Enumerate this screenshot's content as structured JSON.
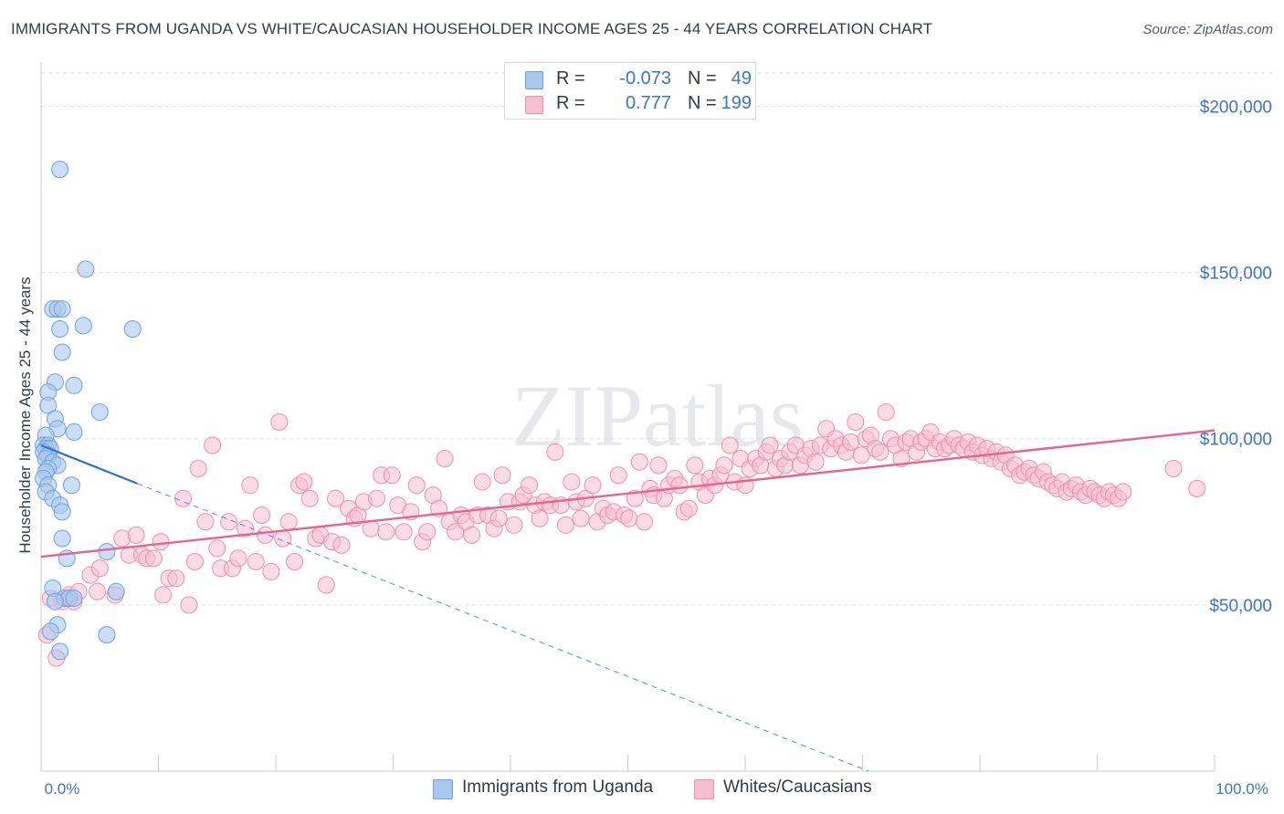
{
  "title": "IMMIGRANTS FROM UGANDA VS WHITE/CAUCASIAN HOUSEHOLDER INCOME AGES 25 - 44 YEARS CORRELATION CHART",
  "source": "Source: ZipAtlas.com",
  "watermark": "ZIPatlas",
  "colors": {
    "blue_fill": "#a9c8ef",
    "blue_stroke": "#6f9fdc",
    "blue_line": "#2f6fd4",
    "pink_fill": "#f7bfd0",
    "pink_stroke": "#ec8fae",
    "pink_line": "#e8648e",
    "grid": "#dde0e4",
    "axis_text": "#3d73c9"
  },
  "legend": {
    "r_label": "R =",
    "n_label": "N =",
    "rows": [
      {
        "r": "-0.073",
        "n": "49",
        "color": "#a9c8ef",
        "border": "#6f9fdc"
      },
      {
        "r": "0.777",
        "n": "199",
        "color": "#f7bfd0",
        "border": "#ec8fae"
      }
    ]
  },
  "bottom_legend": [
    {
      "label": "Immigrants from Uganda",
      "color": "#a9c8ef",
      "border": "#6f9fdc"
    },
    {
      "label": "Whites/Caucasians",
      "color": "#f7bfd0",
      "border": "#ec8fae"
    }
  ],
  "chart_data": {
    "type": "scatter",
    "title": "IMMIGRANTS FROM UGANDA VS WHITE/CAUCASIAN HOUSEHOLDER INCOME AGES 25 - 44 YEARS CORRELATION CHART",
    "xlabel": "",
    "ylabel": "Householder Income Ages 25 - 44 years",
    "xlim": [
      0,
      100
    ],
    "ylim": [
      0,
      210000
    ],
    "x_tick_labels": [
      "0.0%",
      "100.0%"
    ],
    "y_ticks": [
      50000,
      100000,
      150000,
      200000
    ],
    "y_tick_labels": [
      "$50,000",
      "$100,000",
      "$150,000",
      "$200,000"
    ],
    "grid": true,
    "series": [
      {
        "name": "Immigrants from Uganda",
        "r": -0.073,
        "n": 49,
        "trend": {
          "x": [
            0,
            8.2
          ],
          "y": [
            98000,
            86500
          ],
          "dashed_extension_to": [
            70.5,
            0
          ]
        },
        "points": [
          [
            1.6,
            181000
          ],
          [
            3.8,
            151000
          ],
          [
            1.0,
            139000
          ],
          [
            1.4,
            139000
          ],
          [
            1.8,
            139000
          ],
          [
            3.6,
            134000
          ],
          [
            7.8,
            133000
          ],
          [
            1.6,
            133000
          ],
          [
            1.8,
            126000
          ],
          [
            1.2,
            117000
          ],
          [
            2.8,
            116000
          ],
          [
            0.6,
            114000
          ],
          [
            5.0,
            108000
          ],
          [
            0.6,
            110000
          ],
          [
            1.2,
            106000
          ],
          [
            2.8,
            102000
          ],
          [
            1.4,
            103000
          ],
          [
            0.4,
            101000
          ],
          [
            0.2,
            98000
          ],
          [
            0.6,
            98000
          ],
          [
            0.4,
            97000
          ],
          [
            0.8,
            97000
          ],
          [
            0.2,
            96000
          ],
          [
            0.6,
            95000
          ],
          [
            0.4,
            94000
          ],
          [
            1.0,
            93000
          ],
          [
            1.4,
            92000
          ],
          [
            0.6,
            91000
          ],
          [
            0.4,
            90000
          ],
          [
            0.2,
            88000
          ],
          [
            0.6,
            86000
          ],
          [
            0.4,
            84000
          ],
          [
            2.6,
            86000
          ],
          [
            1.0,
            82000
          ],
          [
            1.6,
            80000
          ],
          [
            1.8,
            78000
          ],
          [
            1.8,
            70000
          ],
          [
            2.2,
            64000
          ],
          [
            5.6,
            66000
          ],
          [
            1.0,
            55000
          ],
          [
            6.4,
            54000
          ],
          [
            2.0,
            52000
          ],
          [
            2.4,
            52000
          ],
          [
            1.2,
            51000
          ],
          [
            2.8,
            52000
          ],
          [
            1.4,
            44000
          ],
          [
            0.8,
            42000
          ],
          [
            5.6,
            41000
          ],
          [
            1.6,
            36000
          ]
        ]
      },
      {
        "name": "Whites/Caucasians",
        "r": 0.777,
        "n": 199,
        "trend": {
          "x": [
            0,
            100
          ],
          "y": [
            64500,
            102500
          ]
        },
        "points": [
          [
            0.5,
            41000
          ],
          [
            1.3,
            34000
          ],
          [
            1.8,
            51000
          ],
          [
            0.8,
            52000
          ],
          [
            2.4,
            53000
          ],
          [
            2.8,
            51000
          ],
          [
            3.2,
            54000
          ],
          [
            4.2,
            59000
          ],
          [
            4.8,
            54000
          ],
          [
            5.0,
            61000
          ],
          [
            6.3,
            53000
          ],
          [
            6.9,
            70000
          ],
          [
            7.5,
            65000
          ],
          [
            8.1,
            71000
          ],
          [
            8.6,
            65000
          ],
          [
            9.0,
            64000
          ],
          [
            9.6,
            64000
          ],
          [
            10.2,
            69000
          ],
          [
            10.4,
            53000
          ],
          [
            10.9,
            58000
          ],
          [
            11.5,
            58000
          ],
          [
            12.1,
            82000
          ],
          [
            12.6,
            50000
          ],
          [
            13.1,
            63000
          ],
          [
            13.4,
            91000
          ],
          [
            14.0,
            75000
          ],
          [
            14.6,
            98000
          ],
          [
            15.0,
            67000
          ],
          [
            15.3,
            61000
          ],
          [
            16.0,
            75000
          ],
          [
            16.3,
            61000
          ],
          [
            16.8,
            64000
          ],
          [
            17.4,
            73000
          ],
          [
            17.8,
            86000
          ],
          [
            18.3,
            63000
          ],
          [
            18.8,
            77000
          ],
          [
            19.1,
            71000
          ],
          [
            19.6,
            60000
          ],
          [
            20.3,
            105000
          ],
          [
            20.6,
            70000
          ],
          [
            21.1,
            75000
          ],
          [
            21.6,
            63000
          ],
          [
            22.0,
            86000
          ],
          [
            22.4,
            87000
          ],
          [
            22.9,
            82000
          ],
          [
            23.4,
            70000
          ],
          [
            23.8,
            71000
          ],
          [
            24.3,
            56000
          ],
          [
            24.8,
            69000
          ],
          [
            25.1,
            82000
          ],
          [
            25.6,
            68000
          ],
          [
            26.2,
            79000
          ],
          [
            26.7,
            76000
          ],
          [
            27.0,
            77000
          ],
          [
            27.5,
            81000
          ],
          [
            28.1,
            73000
          ],
          [
            28.6,
            82000
          ],
          [
            29.0,
            89000
          ],
          [
            29.4,
            72000
          ],
          [
            29.9,
            89000
          ],
          [
            30.4,
            80000
          ],
          [
            30.9,
            72000
          ],
          [
            31.5,
            78000
          ],
          [
            32.0,
            86000
          ],
          [
            32.5,
            69000
          ],
          [
            32.9,
            72000
          ],
          [
            33.4,
            83000
          ],
          [
            33.9,
            79000
          ],
          [
            34.4,
            94000
          ],
          [
            34.8,
            75000
          ],
          [
            35.3,
            72000
          ],
          [
            35.8,
            77000
          ],
          [
            36.2,
            75000
          ],
          [
            36.7,
            71000
          ],
          [
            37.2,
            77000
          ],
          [
            37.6,
            87000
          ],
          [
            38.1,
            77000
          ],
          [
            38.6,
            73000
          ],
          [
            39.0,
            76000
          ],
          [
            39.3,
            89000
          ],
          [
            39.8,
            81000
          ],
          [
            40.3,
            74000
          ],
          [
            40.8,
            81000
          ],
          [
            41.1,
            83000
          ],
          [
            41.6,
            86000
          ],
          [
            42.1,
            80000
          ],
          [
            42.5,
            76000
          ],
          [
            42.9,
            81000
          ],
          [
            43.4,
            80000
          ],
          [
            43.8,
            96000
          ],
          [
            44.3,
            80000
          ],
          [
            44.7,
            74000
          ],
          [
            45.2,
            87000
          ],
          [
            45.6,
            81000
          ],
          [
            46.0,
            76000
          ],
          [
            46.4,
            82000
          ],
          [
            47.0,
            86000
          ],
          [
            47.4,
            75000
          ],
          [
            47.9,
            79000
          ],
          [
            48.3,
            77000
          ],
          [
            48.8,
            78000
          ],
          [
            49.2,
            89000
          ],
          [
            49.7,
            77000
          ],
          [
            50.1,
            76000
          ],
          [
            50.6,
            82000
          ],
          [
            51.0,
            93000
          ],
          [
            51.4,
            75000
          ],
          [
            51.9,
            85000
          ],
          [
            52.2,
            83000
          ],
          [
            52.6,
            92000
          ],
          [
            53.1,
            82000
          ],
          [
            53.5,
            86000
          ],
          [
            54.0,
            88000
          ],
          [
            54.4,
            86000
          ],
          [
            54.8,
            78000
          ],
          [
            55.2,
            79000
          ],
          [
            55.7,
            92000
          ],
          [
            56.1,
            87000
          ],
          [
            56.6,
            83000
          ],
          [
            57.0,
            88000
          ],
          [
            57.4,
            86000
          ],
          [
            57.9,
            89000
          ],
          [
            58.2,
            92000
          ],
          [
            58.7,
            98000
          ],
          [
            59.1,
            87000
          ],
          [
            59.6,
            94000
          ],
          [
            60.0,
            86000
          ],
          [
            60.4,
            91000
          ],
          [
            60.9,
            94000
          ],
          [
            61.3,
            92000
          ],
          [
            61.8,
            96000
          ],
          [
            62.1,
            98000
          ],
          [
            62.6,
            91000
          ],
          [
            63.0,
            94000
          ],
          [
            63.4,
            92000
          ],
          [
            63.8,
            96000
          ],
          [
            64.3,
            98000
          ],
          [
            64.7,
            92000
          ],
          [
            65.1,
            95000
          ],
          [
            65.6,
            97000
          ],
          [
            66.0,
            93000
          ],
          [
            66.4,
            98000
          ],
          [
            66.9,
            103000
          ],
          [
            67.3,
            97000
          ],
          [
            67.7,
            100000
          ],
          [
            68.2,
            98000
          ],
          [
            68.6,
            96000
          ],
          [
            69.0,
            99000
          ],
          [
            69.4,
            105000
          ],
          [
            69.9,
            95000
          ],
          [
            70.3,
            100000
          ],
          [
            70.7,
            101000
          ],
          [
            71.1,
            97000
          ],
          [
            71.5,
            96000
          ],
          [
            72.0,
            108000
          ],
          [
            72.4,
            100000
          ],
          [
            72.8,
            98000
          ],
          [
            73.3,
            94000
          ],
          [
            73.7,
            99000
          ],
          [
            74.1,
            100000
          ],
          [
            74.6,
            96000
          ],
          [
            75.0,
            99000
          ],
          [
            75.4,
            100000
          ],
          [
            75.8,
            102000
          ],
          [
            76.2,
            97000
          ],
          [
            76.6,
            99000
          ],
          [
            77.0,
            97000
          ],
          [
            77.4,
            98000
          ],
          [
            77.8,
            100000
          ],
          [
            78.2,
            98000
          ],
          [
            78.6,
            97000
          ],
          [
            79.0,
            99000
          ],
          [
            79.4,
            96000
          ],
          [
            79.8,
            98000
          ],
          [
            80.2,
            95000
          ],
          [
            80.6,
            97000
          ],
          [
            81.0,
            94000
          ],
          [
            81.4,
            96000
          ],
          [
            81.8,
            93000
          ],
          [
            82.2,
            95000
          ],
          [
            82.6,
            91000
          ],
          [
            83.0,
            92000
          ],
          [
            83.4,
            89000
          ],
          [
            83.8,
            90000
          ],
          [
            84.2,
            91000
          ],
          [
            84.6,
            89000
          ],
          [
            85.0,
            88000
          ],
          [
            85.4,
            90000
          ],
          [
            85.8,
            87000
          ],
          [
            86.2,
            86000
          ],
          [
            86.6,
            85000
          ],
          [
            87.0,
            87000
          ],
          [
            87.4,
            84000
          ],
          [
            87.8,
            85000
          ],
          [
            88.2,
            86000
          ],
          [
            88.6,
            84000
          ],
          [
            89.0,
            83000
          ],
          [
            89.4,
            85000
          ],
          [
            89.8,
            84000
          ],
          [
            90.2,
            83000
          ],
          [
            90.6,
            82000
          ],
          [
            91.0,
            84000
          ],
          [
            91.4,
            83000
          ],
          [
            91.8,
            82000
          ],
          [
            92.2,
            84000
          ],
          [
            96.5,
            91000
          ],
          [
            98.5,
            85000
          ]
        ]
      }
    ]
  }
}
